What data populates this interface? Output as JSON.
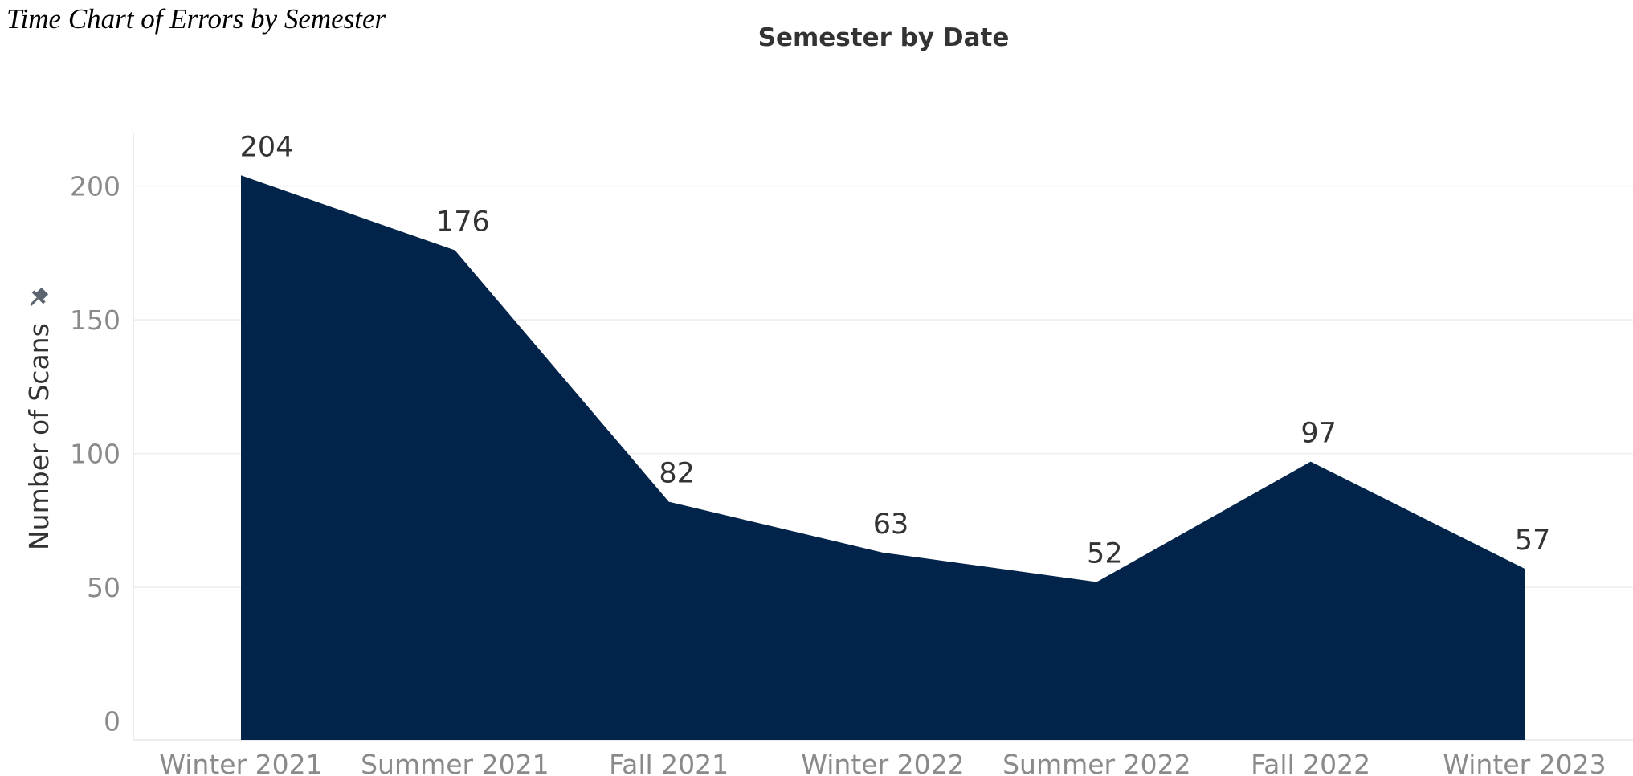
{
  "caption": "Time Chart of Errors by Semester",
  "chart_data": {
    "type": "area",
    "title": "Semester by Date",
    "xlabel": "",
    "ylabel": "Number of Scans",
    "categories": [
      "Winter 2021",
      "Summer 2021",
      "Fall 2021",
      "Winter 2022",
      "Summer 2022",
      "Fall 2022",
      "Winter 2023"
    ],
    "values": [
      204,
      176,
      82,
      63,
      52,
      97,
      57
    ],
    "data_labels": [
      "204",
      "176",
      "82",
      "63",
      "52",
      "97",
      "57"
    ],
    "yticks": [
      0,
      50,
      100,
      150,
      200
    ],
    "ylim": [
      -7,
      220
    ],
    "grid": true,
    "color": "#03244a",
    "gridline_color": "#ececec",
    "pin_icon": "pin-icon"
  }
}
